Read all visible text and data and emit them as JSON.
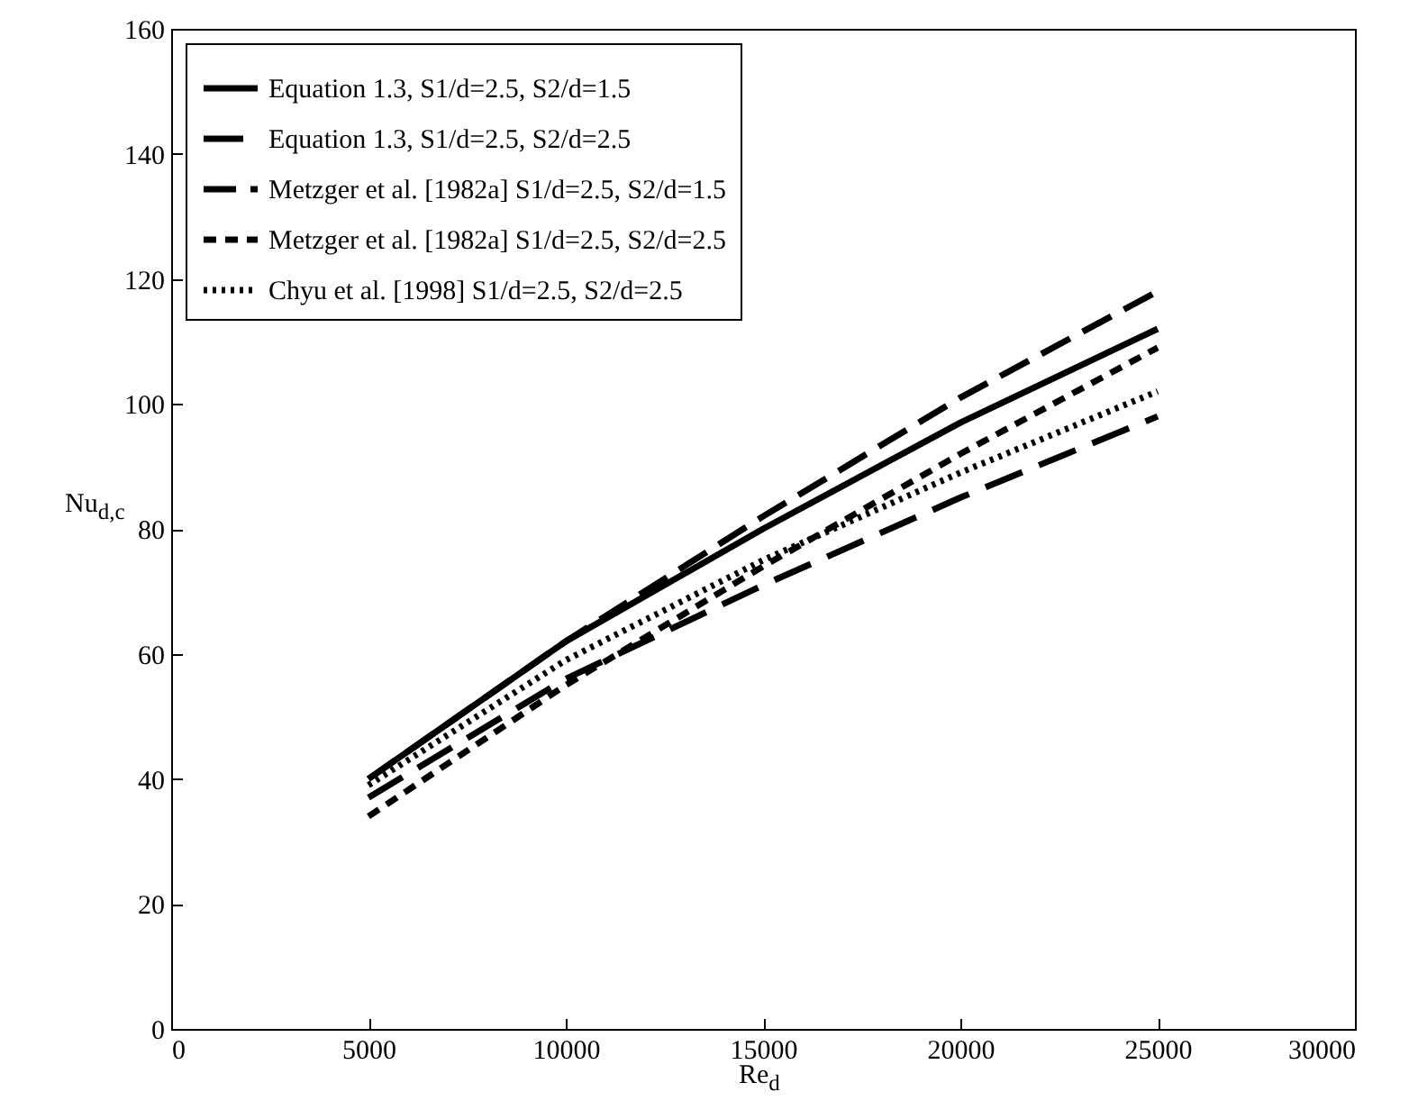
{
  "chart_data": {
    "type": "line",
    "xlabel": "Re$_{d}$",
    "ylabel": "Nu$_{d,c}$",
    "x": [
      5000,
      10000,
      15000,
      20000,
      25000
    ],
    "series": [
      {
        "name": "Equation 1.3, S1/d=2.5, S2/d=1.5",
        "color": "#000000",
        "line_style": "solid",
        "values": [
          40,
          62,
          80,
          97,
          112
        ]
      },
      {
        "name": "Equation 1.3, S1/d=2.5, S2/d=2.5",
        "color": "#000000",
        "line_style": "dashed",
        "values": [
          37,
          56,
          71,
          85,
          98
        ]
      },
      {
        "name": "Metzger et al. [1982a] S1/d=2.5, S2/d=1.5",
        "color": "#000000",
        "line_style": "dashed",
        "values": [
          40,
          62,
          82,
          101,
          118
        ]
      },
      {
        "name": "Metzger et al. [1982a] S1/d=2.5, S2/d=2.5",
        "color": "#000000",
        "line_style": "dashed",
        "values": [
          34,
          55,
          74,
          92,
          109
        ]
      },
      {
        "name": "Chyu et al. [1998] S1/d=2.5, S2/d=2.5",
        "color": "#000000",
        "line_style": "dotted",
        "values": [
          39,
          59,
          75,
          89,
          102
        ]
      }
    ],
    "xlim": [
      0,
      30000
    ],
    "xticks": [
      0,
      5000,
      10000,
      15000,
      20000,
      25000,
      30000
    ],
    "ylim": [
      0,
      160
    ],
    "yticks": [
      0,
      20,
      40,
      60,
      80,
      100,
      120,
      140,
      160
    ],
    "grid": false,
    "legend": "top left",
    "marker": "none"
  }
}
